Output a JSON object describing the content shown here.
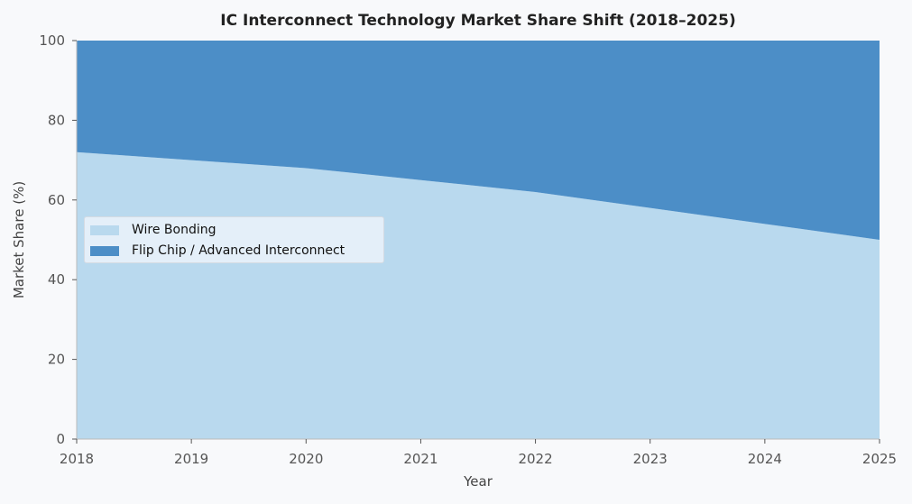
{
  "chart_data": {
    "type": "area",
    "stacked": true,
    "title": "IC Interconnect Technology Market Share Shift (2018–2025)",
    "xlabel": "Year",
    "ylabel": "Market Share (%)",
    "x": [
      2018,
      2019,
      2020,
      2021,
      2022,
      2023,
      2024,
      2025
    ],
    "xticks": [
      "2018",
      "2019",
      "2020",
      "2021",
      "2022",
      "2023",
      "2024",
      "2025"
    ],
    "yticks": [
      "0",
      "20",
      "40",
      "60",
      "80",
      "100"
    ],
    "xlim": [
      2018,
      2025
    ],
    "ylim": [
      0,
      100
    ],
    "grid": false,
    "legend_position": "center-left",
    "series": [
      {
        "name": "Wire Bonding",
        "color": "#b9d9ee",
        "values": [
          72,
          70,
          68,
          65,
          62,
          58,
          54,
          50
        ]
      },
      {
        "name": "Flip Chip / Advanced Interconnect",
        "color": "#4c8ec7",
        "values": [
          28,
          30,
          32,
          35,
          38,
          42,
          46,
          50
        ]
      }
    ]
  }
}
